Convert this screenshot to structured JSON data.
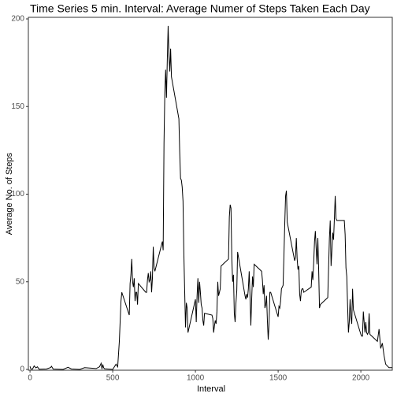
{
  "chart_data": {
    "type": "line",
    "title": "Time Series 5 min. Interval: Average Numer of Steps Taken Each Day",
    "x_label": "Interval",
    "y_label": "Average No. of Steps",
    "xlim": [
      -10,
      2190
    ],
    "ylim": [
      0,
      200
    ],
    "xticks": [
      0,
      500,
      1000,
      1500,
      2000
    ],
    "yticks": [
      0,
      50,
      100,
      150,
      200
    ],
    "x": [
      0,
      5,
      10,
      15,
      25,
      35,
      45,
      55,
      100,
      125,
      130,
      140,
      200,
      230,
      250,
      300,
      330,
      400,
      420,
      430,
      435,
      440,
      445,
      450,
      500,
      520,
      530,
      540,
      550,
      555,
      600,
      605,
      610,
      615,
      620,
      625,
      630,
      635,
      640,
      645,
      650,
      655,
      700,
      705,
      710,
      715,
      720,
      725,
      730,
      735,
      740,
      745,
      750,
      755,
      800,
      805,
      810,
      815,
      820,
      825,
      830,
      835,
      840,
      845,
      850,
      855,
      900,
      905,
      910,
      915,
      920,
      925,
      930,
      935,
      940,
      945,
      950,
      955,
      1000,
      1005,
      1010,
      1015,
      1020,
      1025,
      1030,
      1035,
      1040,
      1045,
      1050,
      1055,
      1100,
      1105,
      1110,
      1115,
      1120,
      1125,
      1130,
      1135,
      1140,
      1145,
      1150,
      1155,
      1200,
      1205,
      1210,
      1215,
      1220,
      1225,
      1230,
      1235,
      1240,
      1245,
      1250,
      1255,
      1300,
      1305,
      1310,
      1315,
      1320,
      1325,
      1330,
      1335,
      1340,
      1345,
      1350,
      1355,
      1400,
      1405,
      1410,
      1415,
      1420,
      1425,
      1430,
      1435,
      1440,
      1445,
      1450,
      1455,
      1500,
      1505,
      1510,
      1515,
      1520,
      1525,
      1530,
      1535,
      1540,
      1545,
      1550,
      1555,
      1600,
      1605,
      1610,
      1615,
      1620,
      1625,
      1630,
      1635,
      1640,
      1645,
      1650,
      1655,
      1700,
      1705,
      1710,
      1715,
      1720,
      1725,
      1730,
      1735,
      1740,
      1745,
      1750,
      1755,
      1800,
      1805,
      1810,
      1815,
      1820,
      1825,
      1830,
      1835,
      1840,
      1845,
      1850,
      1855,
      1900,
      1905,
      1910,
      1915,
      1920,
      1925,
      1930,
      1935,
      1940,
      1945,
      1950,
      1955,
      2000,
      2005,
      2010,
      2015,
      2020,
      2025,
      2030,
      2035,
      2040,
      2045,
      2050,
      2055,
      2100,
      2110,
      2120,
      2130,
      2140,
      2150,
      2160,
      2170,
      2190
    ],
    "series": [
      {
        "name": "steps",
        "color": "#000000",
        "values": [
          1.7,
          0.3,
          0.1,
          0.2,
          2,
          0.9,
          1.5,
          0.1,
          0.3,
          1.1,
          1.8,
          0.2,
          0,
          1.2,
          0.3,
          0,
          1,
          0.5,
          1.5,
          3.5,
          0.2,
          2.8,
          1,
          0.4,
          0,
          3,
          1.5,
          16,
          39,
          44,
          31,
          49,
          54,
          63,
          50,
          47,
          52,
          39,
          44,
          44,
          37,
          49,
          44,
          44,
          51,
          55,
          50,
          51,
          56,
          44,
          52,
          70,
          58,
          56,
          73,
          68,
          129,
          158,
          171,
          155,
          177,
          196,
          179,
          170,
          183,
          167,
          143,
          124,
          109,
          108,
          104,
          96,
          66,
          45,
          24,
          38,
          35,
          21,
          40,
          27,
          42,
          52,
          38,
          50,
          44,
          37,
          35,
          28,
          25,
          32,
          31,
          29,
          21,
          25,
          28,
          26,
          33,
          50,
          42,
          44,
          46,
          59,
          63,
          87,
          94,
          92,
          63,
          50,
          54,
          32,
          27,
          38,
          45,
          67,
          42,
          40,
          43,
          41,
          46,
          56,
          42,
          25,
          40,
          53,
          47,
          60,
          56,
          51,
          43,
          48,
          35,
          37,
          42,
          28,
          17,
          26,
          44,
          44,
          30,
          36,
          35,
          39,
          46,
          47,
          48,
          65,
          83,
          99,
          102,
          84,
          62,
          64,
          75,
          63,
          57,
          59,
          43,
          39,
          45,
          46,
          46,
          44,
          47,
          56,
          51,
          61,
          73,
          79,
          69,
          60,
          75,
          57,
          35,
          37,
          41,
          58,
          75,
          85,
          59,
          68,
          78,
          74,
          86,
          99,
          86,
          85,
          85,
          77,
          58,
          53,
          36,
          21,
          27,
          40,
          30,
          26,
          46,
          34,
          20,
          19,
          19,
          33,
          27,
          21,
          27,
          21,
          20,
          21,
          32,
          20,
          16,
          23,
          12,
          15,
          8,
          3,
          2,
          1,
          1
        ]
      }
    ]
  }
}
